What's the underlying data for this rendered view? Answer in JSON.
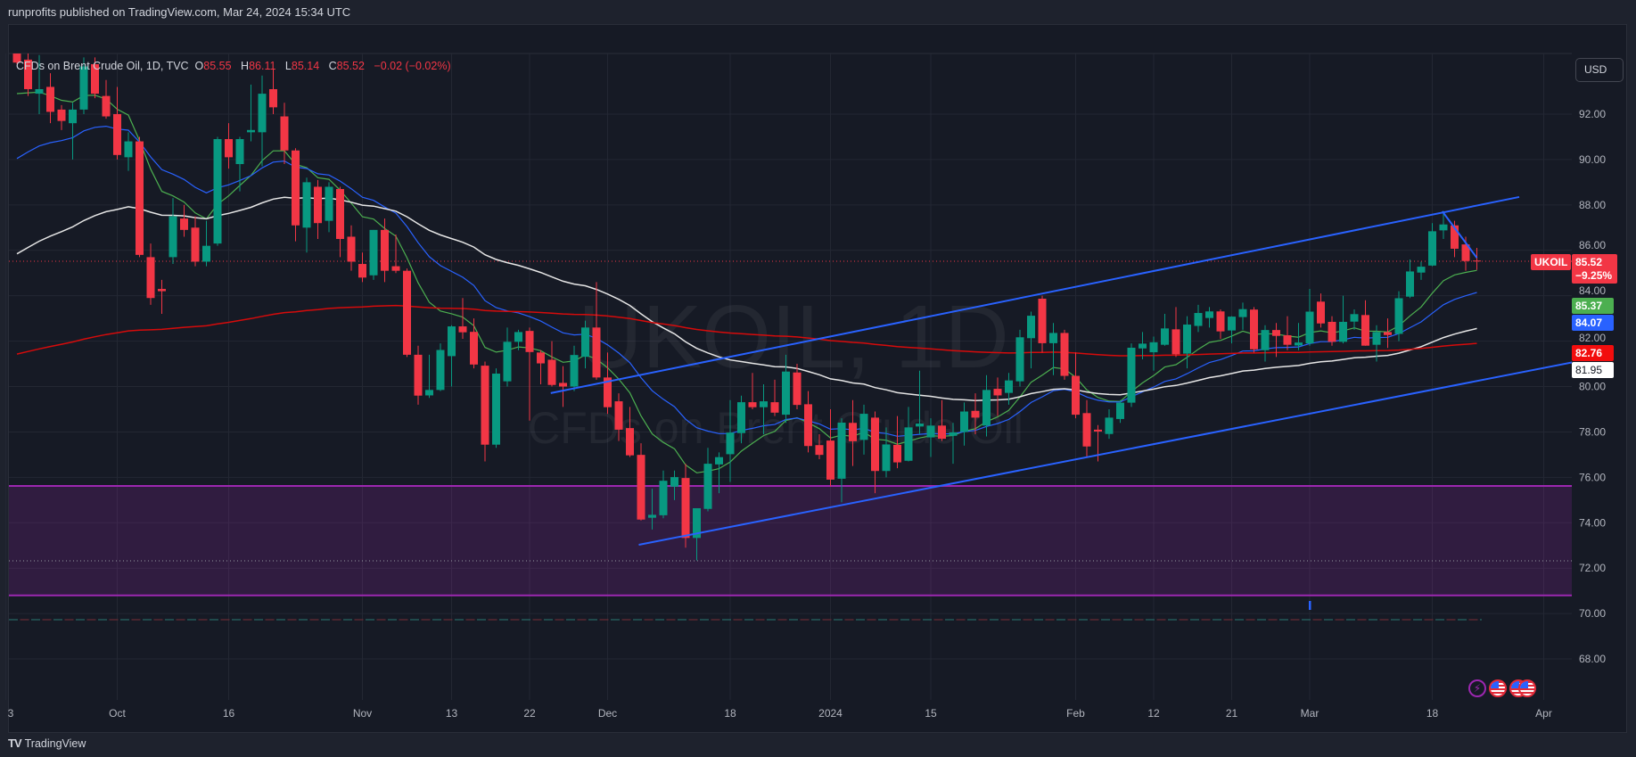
{
  "header": {
    "published": "runprofits published on TradingView.com, Mar 24, 2024 15:34 UTC"
  },
  "legend": {
    "title": "CFDs on Brent Crude Oil, 1D, TVC",
    "o_label": "O",
    "o": "85.55",
    "h_label": "H",
    "h": "86.11",
    "l_label": "L",
    "l": "85.14",
    "c_label": "C",
    "c": "85.52",
    "change": "−0.02 (−0.02%)"
  },
  "watermark": {
    "symbol": "UKOIL, 1D",
    "description": "CFDs on Brent Crude Oil"
  },
  "price_axis": {
    "currency": "USD"
  },
  "price_tags": {
    "symbol": "UKOIL",
    "last": "85.52",
    "last_change": "−9.25%",
    "ema_green": "85.37",
    "ema_blue": "84.07",
    "ema_red": "82.76",
    "ema_white": "81.95"
  },
  "footer": {
    "brand": "TradingView",
    "logo": "TV"
  },
  "bottom_icons": [
    "lightning-icon",
    "us-flag-icon",
    "us-flag-icon",
    "us-flag-icon"
  ],
  "colors": {
    "up": "#089981",
    "down": "#f23645",
    "ema_green": "#4caf50",
    "ema_blue": "#2962ff",
    "ema_white": "#e6e6e6",
    "ema_red": "#d60b0b",
    "zone": "#9c27b0",
    "trendline": "#2962ff",
    "last_price": "#f23645"
  },
  "chart_data": {
    "type": "candlestick",
    "title": "CFDs on Brent Crude Oil, 1D, TVC",
    "ylim": [
      66.6,
      96.3
    ],
    "yticks": [
      "68.00",
      "70.00",
      "72.00",
      "74.00",
      "76.00",
      "78.00",
      "80.00",
      "82.00",
      "84.00",
      "86.00",
      "88.00",
      "90.00",
      "92.00"
    ],
    "xticks": [
      {
        "label": "3",
        "bar": -1
      },
      {
        "label": "Oct",
        "bar": 9
      },
      {
        "label": "16",
        "bar": 19
      },
      {
        "label": "Nov",
        "bar": 31
      },
      {
        "label": "13",
        "bar": 39
      },
      {
        "label": "22",
        "bar": 46
      },
      {
        "label": "Dec",
        "bar": 53
      },
      {
        "label": "18",
        "bar": 64
      },
      {
        "label": "2024",
        "bar": 73
      },
      {
        "label": "15",
        "bar": 82
      },
      {
        "label": "Feb",
        "bar": 95
      },
      {
        "label": "12",
        "bar": 102
      },
      {
        "label": "21",
        "bar": 109
      },
      {
        "label": "Mar",
        "bar": 116
      },
      {
        "label": "18",
        "bar": 127
      },
      {
        "label": "Apr",
        "bar": 137
      }
    ],
    "ohlc": [
      [
        94.67,
        95.0,
        94.2,
        94.27
      ],
      [
        94.4,
        94.8,
        92.8,
        93.1
      ],
      [
        92.9,
        94.6,
        92.0,
        93.1
      ],
      [
        93.2,
        93.8,
        91.6,
        92.1
      ],
      [
        92.2,
        92.4,
        91.3,
        91.7
      ],
      [
        91.6,
        92.5,
        90.0,
        92.2
      ],
      [
        92.2,
        94.5,
        92.0,
        94.1
      ],
      [
        94.2,
        94.5,
        92.7,
        92.9
      ],
      [
        92.8,
        93.5,
        91.8,
        91.9
      ],
      [
        92.0,
        93.2,
        90.0,
        90.2
      ],
      [
        90.1,
        91.2,
        89.5,
        90.8
      ],
      [
        90.8,
        91.0,
        85.7,
        85.8
      ],
      [
        85.7,
        86.3,
        83.6,
        83.9
      ],
      [
        84.3,
        84.7,
        83.2,
        84.2
      ],
      [
        85.7,
        88.3,
        85.4,
        87.5
      ],
      [
        87.4,
        88.0,
        86.6,
        86.9
      ],
      [
        87.0,
        87.5,
        85.3,
        85.5
      ],
      [
        85.5,
        87.3,
        85.3,
        86.2
      ],
      [
        86.3,
        91.0,
        86.2,
        90.9
      ],
      [
        90.9,
        91.6,
        89.6,
        90.1
      ],
      [
        89.8,
        91.0,
        88.6,
        90.9
      ],
      [
        91.2,
        93.3,
        90.8,
        91.3
      ],
      [
        91.2,
        93.7,
        89.7,
        92.9
      ],
      [
        93.1,
        94.0,
        92.0,
        92.3
      ],
      [
        91.9,
        92.5,
        89.8,
        90.4
      ],
      [
        90.4,
        90.5,
        86.4,
        87.1
      ],
      [
        87.0,
        89.2,
        85.9,
        89.0
      ],
      [
        88.8,
        89.1,
        86.5,
        87.2
      ],
      [
        87.3,
        89.0,
        86.8,
        88.8
      ],
      [
        88.7,
        88.8,
        85.7,
        86.5
      ],
      [
        86.6,
        87.1,
        85.1,
        85.5
      ],
      [
        85.4,
        85.9,
        84.6,
        84.8
      ],
      [
        84.9,
        86.9,
        84.7,
        86.9
      ],
      [
        86.9,
        87.4,
        84.6,
        85.1
      ],
      [
        85.3,
        86.7,
        85.0,
        85.1
      ],
      [
        85.1,
        85.2,
        81.3,
        81.4
      ],
      [
        81.4,
        81.8,
        79.2,
        79.6
      ],
      [
        79.61,
        81.4,
        79.5,
        79.85
      ],
      [
        79.85,
        81.9,
        79.8,
        81.61
      ],
      [
        81.34,
        82.7,
        80.0,
        82.65
      ],
      [
        82.65,
        83.9,
        82.1,
        82.39
      ],
      [
        82.41,
        83.0,
        80.8,
        80.97
      ],
      [
        80.92,
        81.1,
        76.7,
        77.44
      ],
      [
        77.44,
        80.8,
        77.3,
        80.57
      ],
      [
        80.23,
        82.6,
        80.0,
        81.97
      ],
      [
        81.97,
        82.5,
        81.6,
        82.4
      ],
      [
        82.45,
        82.6,
        78.5,
        81.52
      ],
      [
        81.5,
        81.6,
        80.1,
        81.02
      ],
      [
        81.18,
        82.0,
        80.0,
        80.07
      ],
      [
        80.16,
        80.9,
        79.1,
        80.0
      ],
      [
        80.0,
        81.8,
        79.8,
        81.39
      ],
      [
        81.31,
        82.9,
        80.8,
        82.6
      ],
      [
        82.6,
        84.6,
        80.3,
        80.4
      ],
      [
        80.4,
        81.5,
        78.8,
        79.09
      ],
      [
        79.35,
        79.7,
        77.6,
        78.1
      ],
      [
        78.17,
        79.1,
        76.9,
        76.97
      ],
      [
        76.99,
        77.5,
        74.1,
        74.14
      ],
      [
        74.22,
        75.5,
        73.7,
        74.35
      ],
      [
        74.33,
        76.3,
        74.2,
        75.85
      ],
      [
        75.59,
        76.3,
        75.0,
        76.01
      ],
      [
        75.97,
        76.6,
        72.9,
        73.33
      ],
      [
        73.33,
        74.6,
        72.34,
        74.64
      ],
      [
        74.61,
        77.3,
        74.5,
        76.6
      ],
      [
        76.57,
        77.1,
        75.3,
        76.89
      ],
      [
        77.02,
        79.4,
        75.8,
        77.97
      ],
      [
        77.95,
        79.6,
        77.5,
        79.31
      ],
      [
        79.31,
        80.6,
        79.0,
        79.09
      ],
      [
        79.09,
        80.1,
        77.9,
        79.35
      ],
      [
        79.31,
        80.3,
        78.7,
        78.85
      ],
      [
        78.76,
        81.4,
        78.4,
        80.66
      ],
      [
        80.62,
        81.0,
        79.0,
        79.19
      ],
      [
        79.22,
        79.8,
        77.1,
        77.38
      ],
      [
        77.42,
        77.9,
        76.8,
        76.99
      ],
      [
        77.62,
        79.0,
        75.6,
        75.9
      ],
      [
        75.94,
        78.6,
        74.9,
        78.41
      ],
      [
        78.4,
        79.4,
        76.5,
        77.59
      ],
      [
        77.65,
        79.2,
        77.0,
        78.8
      ],
      [
        78.63,
        78.9,
        75.3,
        76.28
      ],
      [
        76.28,
        78.2,
        76.0,
        77.45
      ],
      [
        77.43,
        78.7,
        76.4,
        76.66
      ],
      [
        76.73,
        79.1,
        76.7,
        78.2
      ],
      [
        78.24,
        80.7,
        77.9,
        78.37
      ],
      [
        77.76,
        78.6,
        76.9,
        78.28
      ],
      [
        78.28,
        79.4,
        77.6,
        77.7
      ],
      [
        77.83,
        78.4,
        76.6,
        77.98
      ],
      [
        78.0,
        79.3,
        77.4,
        78.9
      ],
      [
        78.93,
        79.7,
        77.9,
        78.63
      ],
      [
        78.28,
        80.5,
        77.8,
        79.85
      ],
      [
        79.9,
        80.4,
        78.7,
        79.61
      ],
      [
        79.72,
        80.6,
        79.2,
        80.27
      ],
      [
        80.23,
        82.5,
        80.0,
        82.17
      ],
      [
        82.13,
        83.3,
        80.8,
        83.12
      ],
      [
        83.87,
        84.0,
        81.5,
        81.91
      ],
      [
        81.91,
        82.8,
        80.5,
        82.36
      ],
      [
        82.36,
        82.5,
        80.3,
        80.47
      ],
      [
        80.47,
        81.5,
        78.6,
        78.76
      ],
      [
        78.83,
        79.4,
        76.9,
        77.36
      ],
      [
        78.1,
        78.3,
        76.7,
        78.02
      ],
      [
        77.91,
        79.0,
        77.7,
        78.63
      ],
      [
        78.57,
        79.4,
        78.4,
        79.29
      ],
      [
        79.29,
        81.9,
        79.1,
        81.71
      ],
      [
        81.68,
        82.4,
        81.2,
        81.89
      ],
      [
        81.51,
        82.2,
        80.7,
        81.95
      ],
      [
        81.84,
        83.2,
        81.8,
        82.56
      ],
      [
        82.52,
        83.5,
        81.3,
        81.42
      ],
      [
        81.45,
        83.1,
        80.8,
        82.73
      ],
      [
        82.67,
        83.6,
        82.4,
        83.24
      ],
      [
        83.02,
        83.5,
        82.6,
        83.31
      ],
      [
        83.31,
        83.4,
        82.1,
        82.43
      ],
      [
        82.47,
        83.1,
        81.9,
        83.08
      ],
      [
        83.06,
        83.7,
        82.5,
        83.41
      ],
      [
        83.39,
        83.5,
        81.5,
        81.64
      ],
      [
        81.6,
        82.7,
        81.1,
        82.49
      ],
      [
        82.49,
        82.8,
        81.3,
        82.23
      ],
      [
        82.26,
        83.1,
        81.6,
        81.84
      ],
      [
        81.81,
        82.8,
        81.6,
        81.94
      ],
      [
        81.9,
        84.3,
        81.8,
        83.3
      ],
      [
        83.74,
        84.1,
        82.6,
        82.78
      ],
      [
        82.85,
        83.1,
        81.8,
        81.97
      ],
      [
        81.97,
        84.0,
        81.9,
        82.85
      ],
      [
        82.86,
        83.4,
        82.5,
        83.19
      ],
      [
        83.15,
        83.8,
        81.8,
        81.8
      ],
      [
        81.84,
        82.7,
        81.1,
        82.4
      ],
      [
        82.4,
        83.0,
        81.7,
        82.27
      ],
      [
        82.32,
        84.2,
        82.0,
        83.89
      ],
      [
        83.96,
        85.6,
        83.9,
        85.07
      ],
      [
        85.02,
        85.5,
        84.7,
        85.28
      ],
      [
        85.33,
        87.2,
        85.3,
        86.84
      ],
      [
        86.88,
        87.73,
        86.5,
        87.14
      ],
      [
        87.1,
        87.3,
        85.7,
        86.07
      ],
      [
        86.26,
        86.6,
        85.1,
        85.53
      ],
      [
        85.55,
        86.11,
        85.14,
        85.52
      ]
    ],
    "emas": [
      {
        "name": "EMA green",
        "period": 10,
        "seed": 92.6,
        "color": "#4caf50",
        "last": 85.37
      },
      {
        "name": "EMA blue",
        "period": 20,
        "seed": 89.6,
        "color": "#2962ff",
        "last": 84.07
      },
      {
        "name": "EMA white",
        "period": 50,
        "seed": 85.5,
        "color": "#e6e6e6",
        "last": 81.95
      },
      {
        "name": "EMA red",
        "period": 200,
        "seed": 81.3,
        "color": "#d60b0b",
        "last": 82.76
      }
    ],
    "last_price": 85.52,
    "zone": {
      "top": 75.62,
      "bottom": 70.8,
      "mid_dotted": 72.32
    },
    "trendlines": [
      {
        "name": "channel-upper",
        "from": [
          47.9,
          79.71
        ],
        "to": [
          134.8,
          88.35
        ]
      },
      {
        "name": "channel-lower",
        "from": [
          55.8,
          73.03
        ],
        "to": [
          142,
          81.3
        ]
      },
      {
        "name": "pullback-line",
        "from": [
          127.9,
          87.72
        ],
        "to": [
          131,
          85.67
        ]
      }
    ],
    "baseline_dashed": 69.73,
    "marker_bar": 116
  }
}
